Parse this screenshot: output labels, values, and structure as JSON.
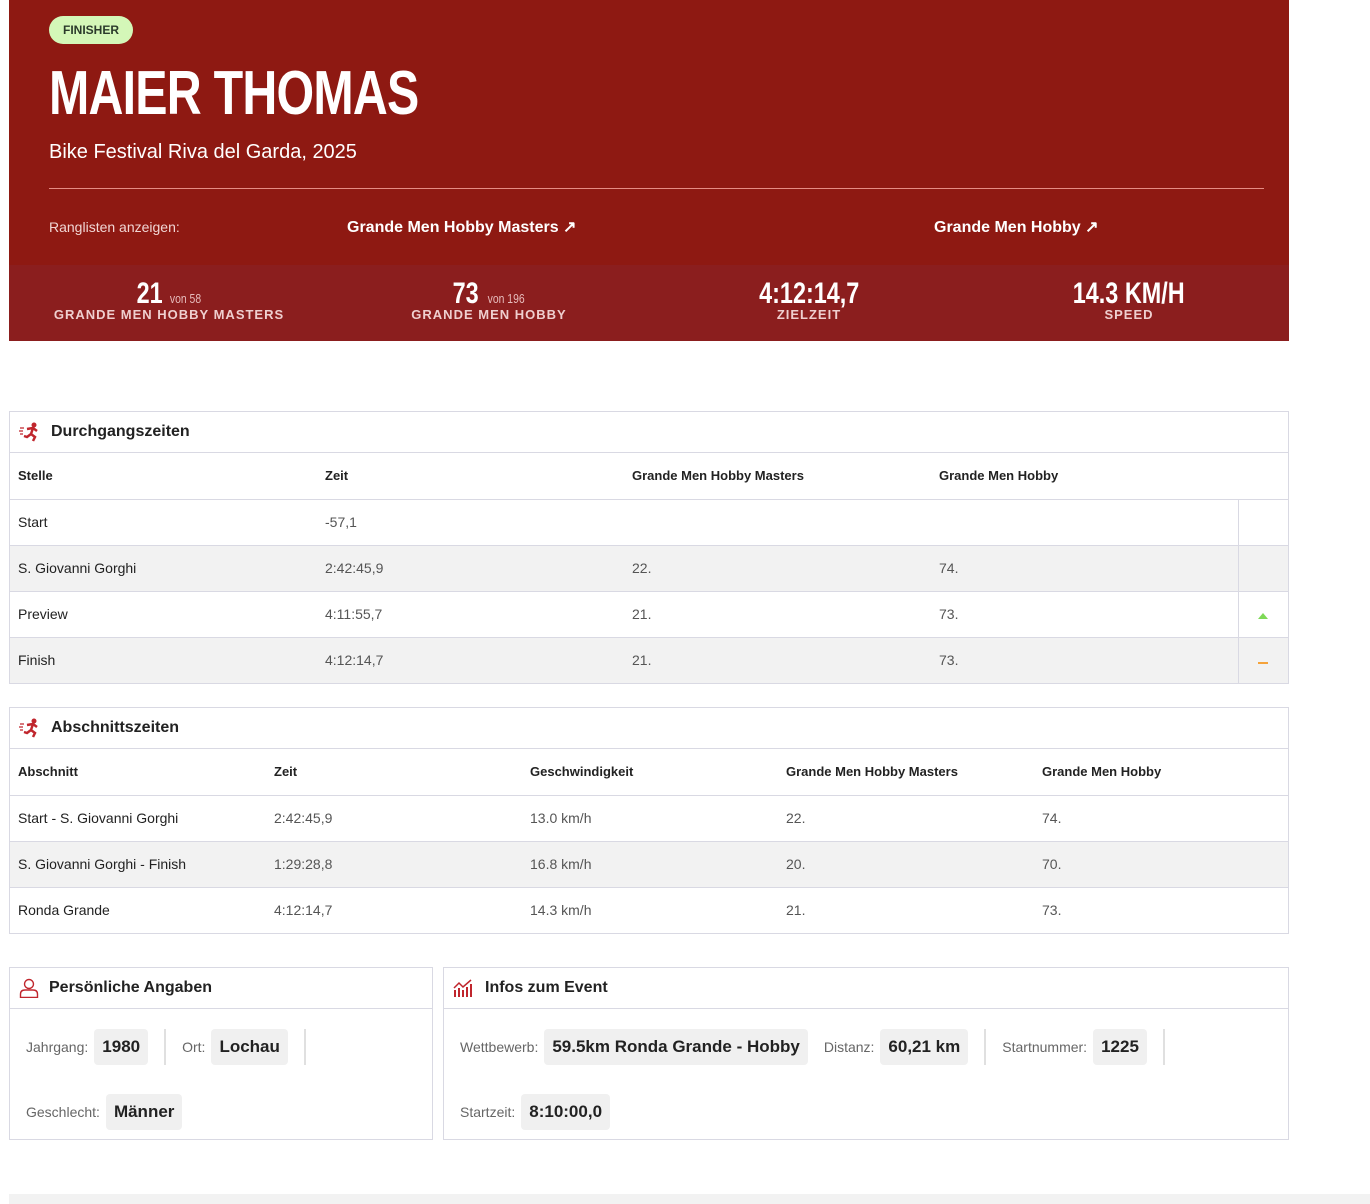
{
  "hero": {
    "badge": "FINISHER",
    "name": "MAIER THOMAS",
    "event": "Bike Festival Riva del Garda, 2025",
    "rankings_label": "Ranglisten anzeigen:",
    "ranking_links": [
      "Grande Men Hobby Masters ↗",
      "Grande Men Hobby ↗"
    ],
    "stats": [
      {
        "value": "21",
        "of": "von 58",
        "label": "GRANDE MEN HOBBY MASTERS"
      },
      {
        "value": "73",
        "of": "von 196",
        "label": "GRANDE MEN HOBBY"
      },
      {
        "value": "4:12:14,7",
        "of": "",
        "label": "ZIELZEIT"
      },
      {
        "value": "14.3 KM/H",
        "of": "",
        "label": "SPEED"
      }
    ],
    "colors": {
      "background": "#8e1912",
      "badge": "#d4f7b8"
    }
  },
  "splits": {
    "title": "Durchgangszeiten",
    "icon": "runner-icon",
    "columns": [
      "Stelle",
      "Zeit",
      "Grande Men Hobby Masters",
      "Grande Men Hobby"
    ],
    "rows": [
      {
        "cells": [
          "Start",
          "-57,1",
          "",
          ""
        ],
        "trend": ""
      },
      {
        "cells": [
          "S. Giovanni Gorghi",
          "2:42:45,9",
          "22.",
          "74."
        ],
        "trend": ""
      },
      {
        "cells": [
          "Preview",
          "4:11:55,7",
          "21.",
          "73."
        ],
        "trend": "up"
      },
      {
        "cells": [
          "Finish",
          "4:12:14,7",
          "21.",
          "73."
        ],
        "trend": "same"
      }
    ],
    "colors": {
      "up": "#7ed957",
      "same": "#f5a33b"
    }
  },
  "sections": {
    "title": "Abschnittszeiten",
    "icon": "runner-icon",
    "columns": [
      "Abschnitt",
      "Zeit",
      "Geschwindigkeit",
      "Grande Men Hobby Masters",
      "Grande Men Hobby"
    ],
    "rows": [
      [
        "Start - S. Giovanni Gorghi",
        "2:42:45,9",
        "13.0 km/h",
        "22.",
        "74."
      ],
      [
        "S. Giovanni Gorghi - Finish",
        "1:29:28,8",
        "16.8 km/h",
        "20.",
        "70."
      ],
      [
        "Ronda Grande",
        "4:12:14,7",
        "14.3 km/h",
        "21.",
        "73."
      ]
    ]
  },
  "personal": {
    "title": "Persönliche Angaben",
    "icon": "user-icon",
    "jahrgang_label": "Jahrgang:",
    "jahrgang": "1980",
    "ort_label": "Ort:",
    "ort": "Lochau",
    "geschlecht_label": "Geschlecht:",
    "geschlecht": "Männer"
  },
  "event_info": {
    "title": "Infos zum Event",
    "icon": "chart-icon",
    "wettbewerb_label": "Wettbewerb:",
    "wettbewerb": "59.5km Ronda Grande - Hobby",
    "distanz_label": "Distanz:",
    "distanz": "60,21 km",
    "startnummer_label": "Startnummer:",
    "startnummer": "1225",
    "startzeit_label": "Startzeit:",
    "startzeit": "8:10:00,0"
  }
}
